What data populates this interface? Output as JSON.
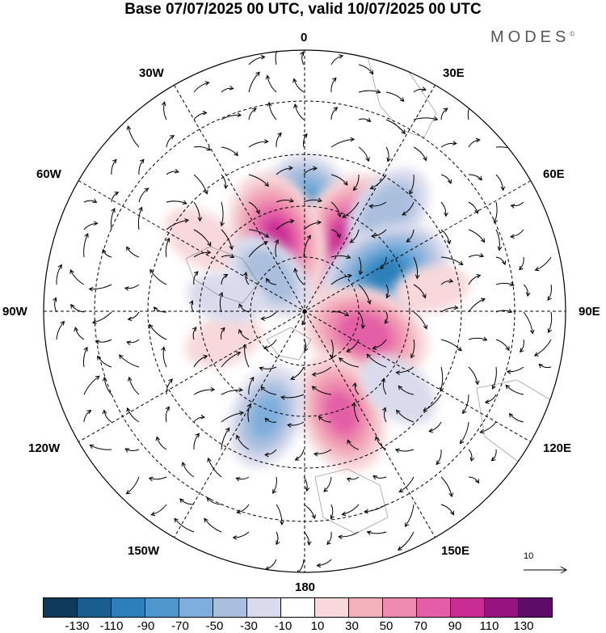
{
  "title": "Base 07/07/2025 00 UTC, valid 10/07/2025 00 UTC",
  "brand": "MODES",
  "brand_mark": "©",
  "longitude_labels": {
    "top": "0",
    "top_right": "30E",
    "upper_right": "60E",
    "right": "90E",
    "lower_right": "120E",
    "bottom_right": "150E",
    "bottom": "180",
    "bottom_left": "150W",
    "lower_left": "120W",
    "left": "90W",
    "upper_left": "60W",
    "top_left": "30W"
  },
  "reference_vector": "10",
  "colorbar": {
    "colors": [
      "#0f3a5c",
      "#1a5d8f",
      "#2c7fb8",
      "#4d97cc",
      "#7eaedb",
      "#aabfde",
      "#d9dbec",
      "#ffffff",
      "#f8d8da",
      "#f3b1bc",
      "#ee8bae",
      "#e35ea6",
      "#c92d93",
      "#97137f",
      "#5d0c68"
    ],
    "tick_labels": [
      "-130",
      "-110",
      "-90",
      "-70",
      "-50",
      "-30",
      "-10",
      "10",
      "30",
      "50",
      "70",
      "90",
      "110",
      "130"
    ]
  },
  "anomalies": [
    {
      "lon": 0,
      "lat": 0.58,
      "value": -120
    },
    {
      "lon": 30,
      "lat": 0.58,
      "value": 110
    },
    {
      "lon": 40,
      "lat": 0.9,
      "value": -55
    },
    {
      "lon": -20,
      "lat": 0.55,
      "value": 100
    },
    {
      "lon": 65,
      "lat": 0.62,
      "value": -100
    },
    {
      "lon": 110,
      "lat": 0.45,
      "value": 95
    },
    {
      "lon": 160,
      "lat": 0.75,
      "value": 85
    },
    {
      "lon": -160,
      "lat": 0.78,
      "value": -60
    },
    {
      "lon": -55,
      "lat": 0.87,
      "value": 30
    },
    {
      "lon": -45,
      "lat": 0.35,
      "value": -50
    },
    {
      "lon": 80,
      "lat": 0.9,
      "value": 20
    },
    {
      "lon": 130,
      "lat": 0.85,
      "value": -35
    },
    {
      "lon": -110,
      "lat": 0.6,
      "value": 25
    },
    {
      "lon": -80,
      "lat": 0.55,
      "value": -25
    }
  ]
}
